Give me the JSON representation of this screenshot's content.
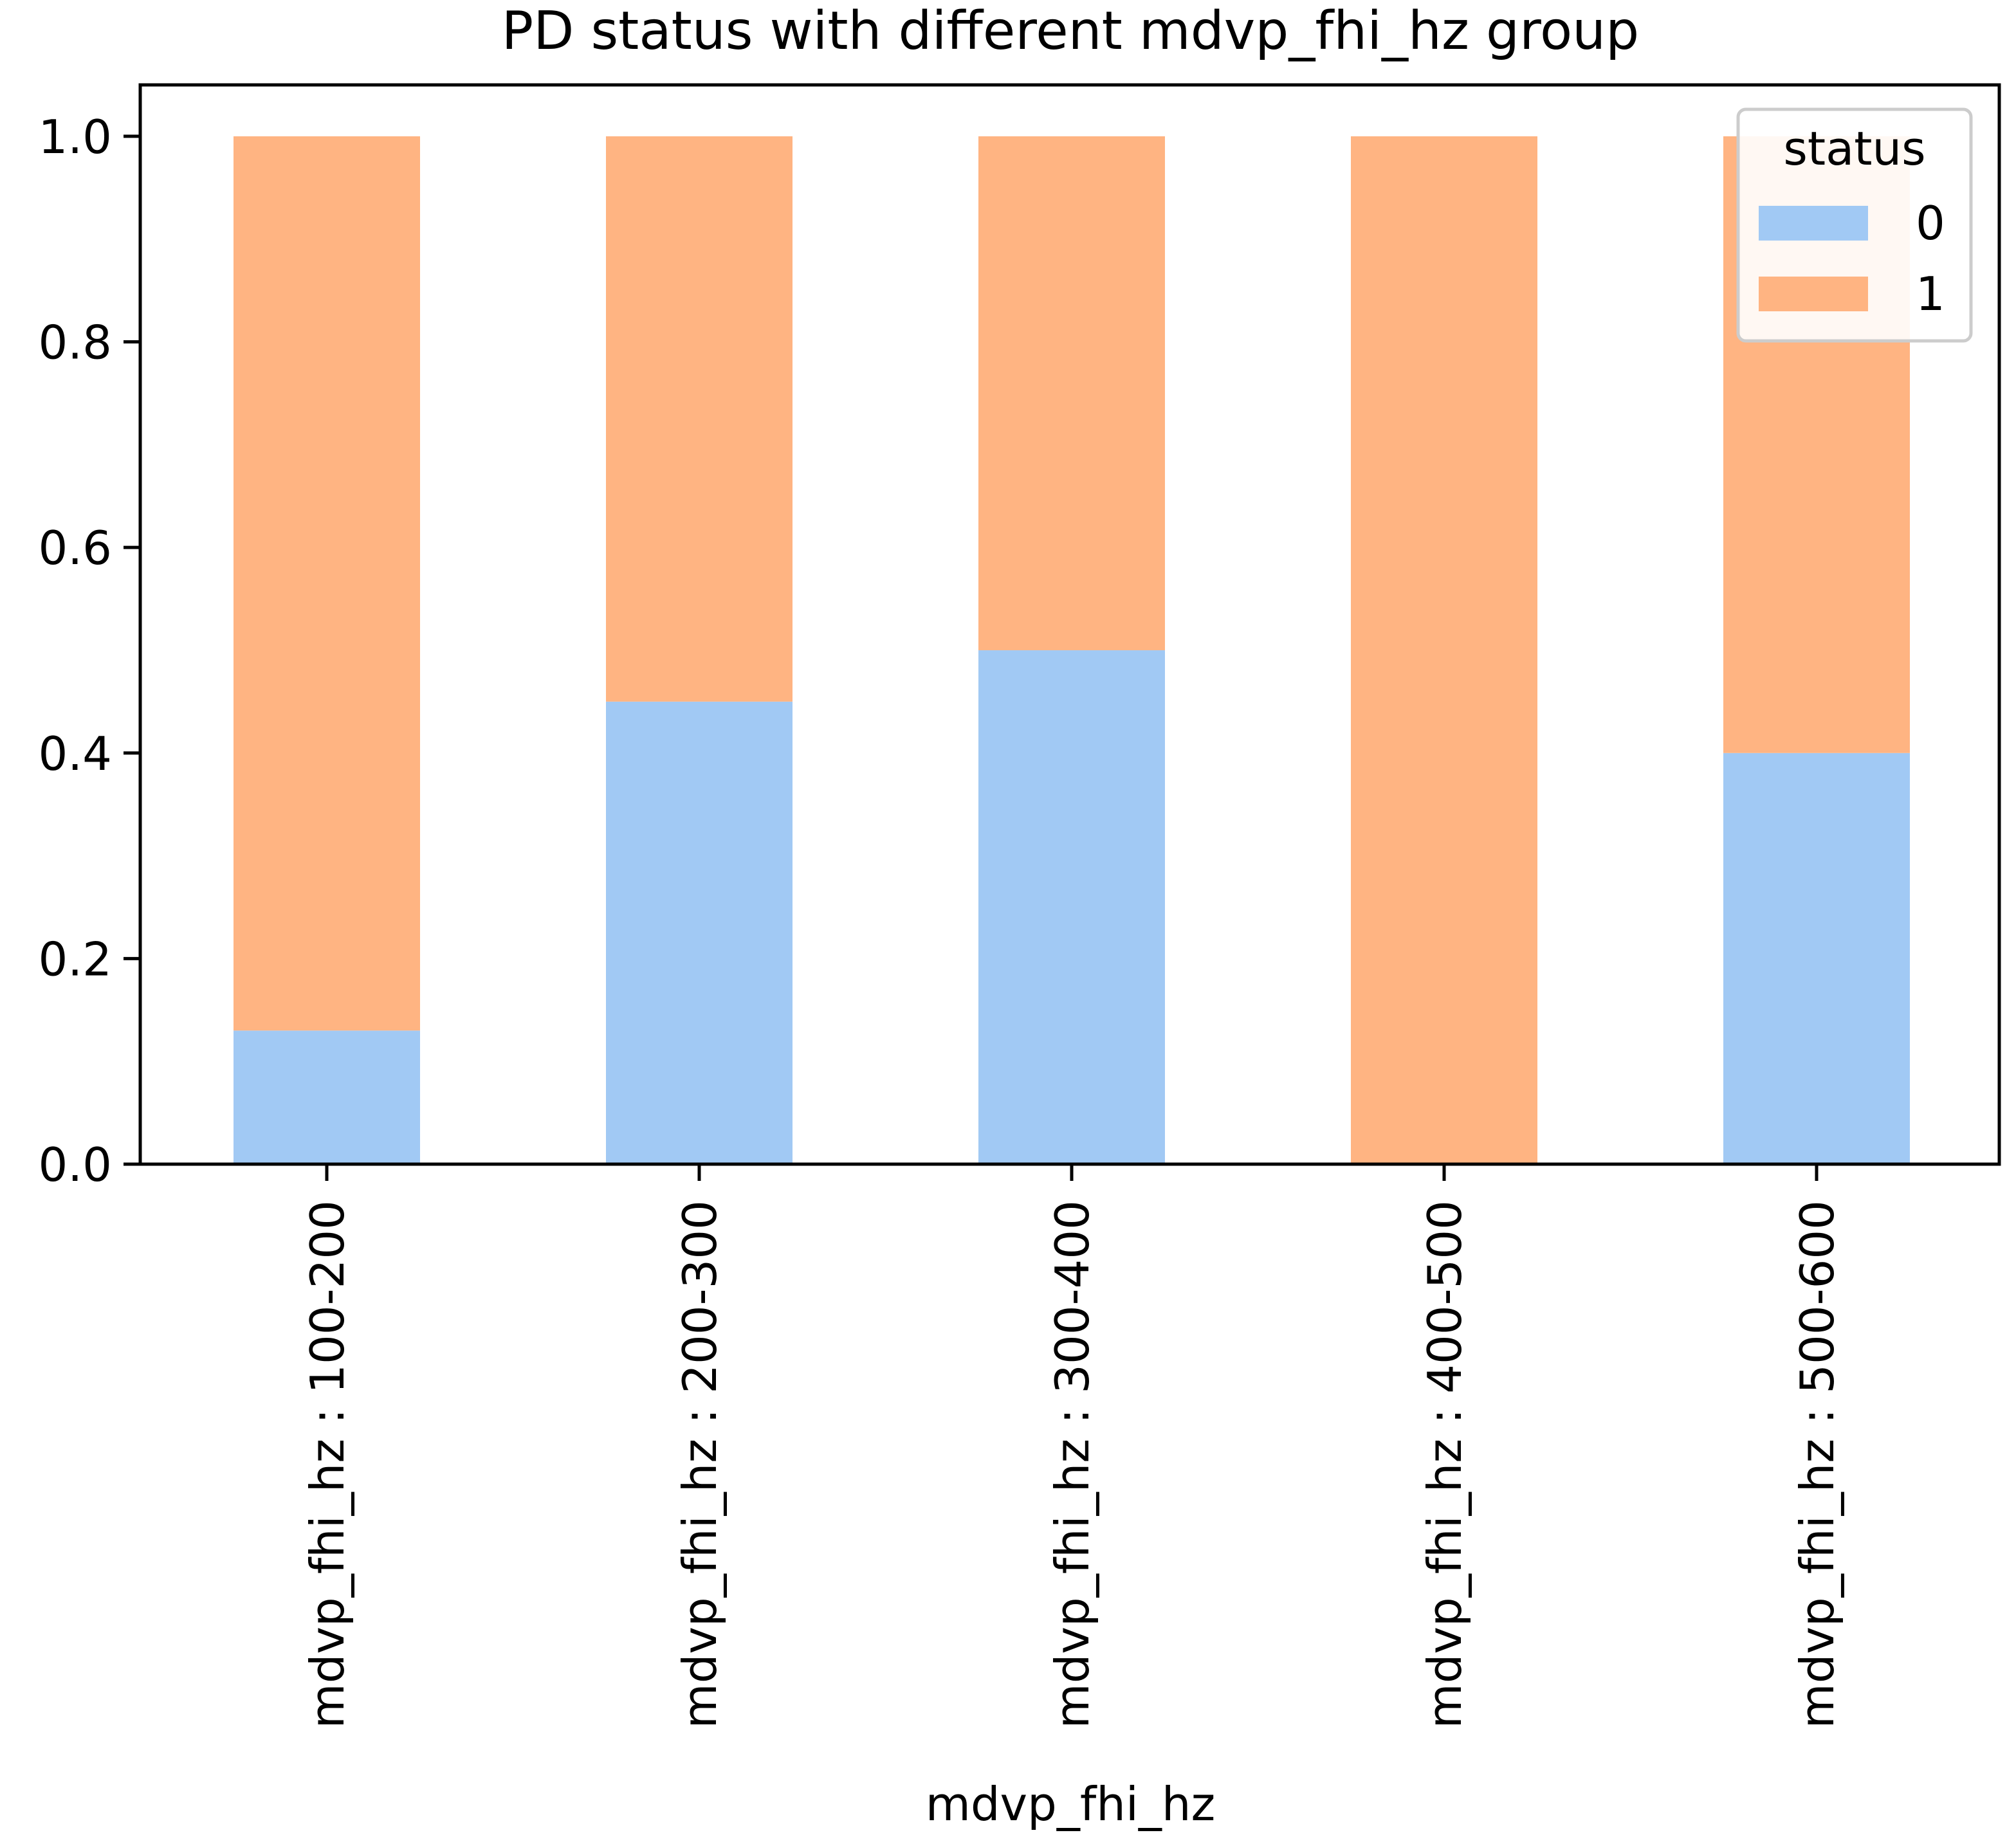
{
  "chart_data": {
    "type": "bar",
    "stacked": true,
    "title": "PD status with different mdvp_fhi_hz group",
    "xlabel": "mdvp_fhi_hz",
    "ylabel": "",
    "ylim": [
      0,
      1.05
    ],
    "yticks": [
      "0.0",
      "0.2",
      "0.4",
      "0.6",
      "0.8",
      "1.0"
    ],
    "ytick_values": [
      0.0,
      0.2,
      0.4,
      0.6,
      0.8,
      1.0
    ],
    "categories": [
      "mdvp_fhi_hz : 100-200",
      "mdvp_fhi_hz : 200-300",
      "mdvp_fhi_hz : 300-400",
      "mdvp_fhi_hz : 400-500",
      "mdvp_fhi_hz : 500-600"
    ],
    "series": [
      {
        "name": "0",
        "color": "#a1c9f4",
        "values": [
          0.13,
          0.45,
          0.5,
          0.0,
          0.4
        ]
      },
      {
        "name": "1",
        "color": "#ffb482",
        "values": [
          0.87,
          0.55,
          0.5,
          1.0,
          0.6
        ]
      }
    ],
    "legend": {
      "title": "status",
      "placement": "top-right",
      "entries": [
        "0",
        "1"
      ]
    },
    "grid": false
  }
}
